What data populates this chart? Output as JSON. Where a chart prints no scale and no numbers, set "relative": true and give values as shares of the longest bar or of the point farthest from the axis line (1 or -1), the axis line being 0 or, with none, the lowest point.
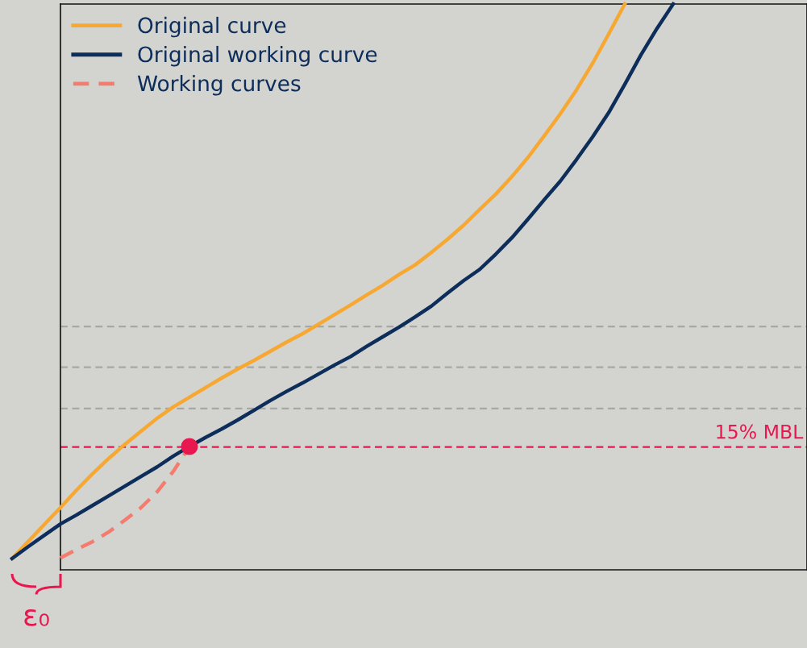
{
  "chart_data": {
    "type": "line",
    "relative": true,
    "grid": false,
    "legend": "top left",
    "categories": [
      null,
      null,
      null,
      null,
      null,
      null,
      null,
      null,
      null,
      null,
      null,
      null,
      null,
      null,
      null,
      null,
      null,
      null,
      null,
      null,
      null,
      null,
      null,
      null,
      null,
      null,
      null,
      null,
      null,
      null,
      null,
      null,
      null,
      null,
      null,
      null,
      null,
      null,
      null,
      null,
      null,
      null,
      null,
      null,
      null,
      null,
      null,
      null,
      null,
      null
    ],
    "series": [
      {
        "name": "Original curve",
        "color": "#f7a833",
        "line_style": "solid",
        "values": [
          0.02,
          0.05,
          0.08,
          0.11,
          0.141,
          0.17,
          0.197,
          0.222,
          0.245,
          0.268,
          0.288,
          0.305,
          0.322,
          0.339,
          0.355,
          0.37,
          0.386,
          0.402,
          0.417,
          0.434,
          0.451,
          0.468,
          0.486,
          0.503,
          0.522,
          0.539,
          0.561,
          0.584,
          0.609,
          0.637,
          0.664,
          0.695,
          0.729,
          0.767,
          0.806,
          0.848,
          0.895,
          0.947,
          1.0,
          null,
          null,
          null,
          null,
          null,
          null,
          null,
          null,
          null,
          null,
          null
        ]
      },
      {
        "name": "Original working curve",
        "color": "#0d2d5a",
        "line_style": "solid",
        "values": [
          0.02,
          0.041,
          0.061,
          0.081,
          0.097,
          0.114,
          0.131,
          0.148,
          0.165,
          0.182,
          0.201,
          0.218,
          0.234,
          0.249,
          0.265,
          0.282,
          0.299,
          0.315,
          0.33,
          0.346,
          0.362,
          0.377,
          0.395,
          0.412,
          0.429,
          0.447,
          0.466,
          0.489,
          0.511,
          0.531,
          0.558,
          0.587,
          0.62,
          0.654,
          0.687,
          0.725,
          0.765,
          0.808,
          0.858,
          0.91,
          0.957,
          1.0,
          null,
          null,
          null,
          null,
          null,
          null,
          null,
          null
        ]
      },
      {
        "name": "Working curves",
        "color": "#f47c6f",
        "line_style": "dashed",
        "values": [
          null,
          null,
          null,
          0.021,
          0.036,
          0.05,
          0.067,
          0.088,
          0.11,
          0.138,
          0.174,
          0.218,
          null,
          null,
          null,
          null,
          null,
          null,
          null,
          null,
          null,
          null,
          null,
          null,
          null,
          null,
          null,
          null,
          null,
          null,
          null,
          null,
          null,
          null,
          null,
          null,
          null,
          null,
          null,
          null,
          null,
          null,
          null,
          null,
          null,
          null,
          null,
          null,
          null,
          null
        ]
      }
    ],
    "ref_lines": [
      {
        "axis": "y",
        "value": 0.43,
        "color": "#a6a8a3",
        "line_style": "dashed"
      },
      {
        "axis": "y",
        "value": 0.358,
        "color": "#a6a8a3",
        "line_style": "dashed"
      },
      {
        "axis": "y",
        "value": 0.285,
        "color": "#a6a8a3",
        "line_style": "dashed"
      },
      {
        "axis": "y",
        "value": 0.217,
        "color": "#e8174f",
        "line_style": "dashed",
        "label": "15% MBL"
      }
    ],
    "annotations": [
      "ε₀"
    ]
  }
}
